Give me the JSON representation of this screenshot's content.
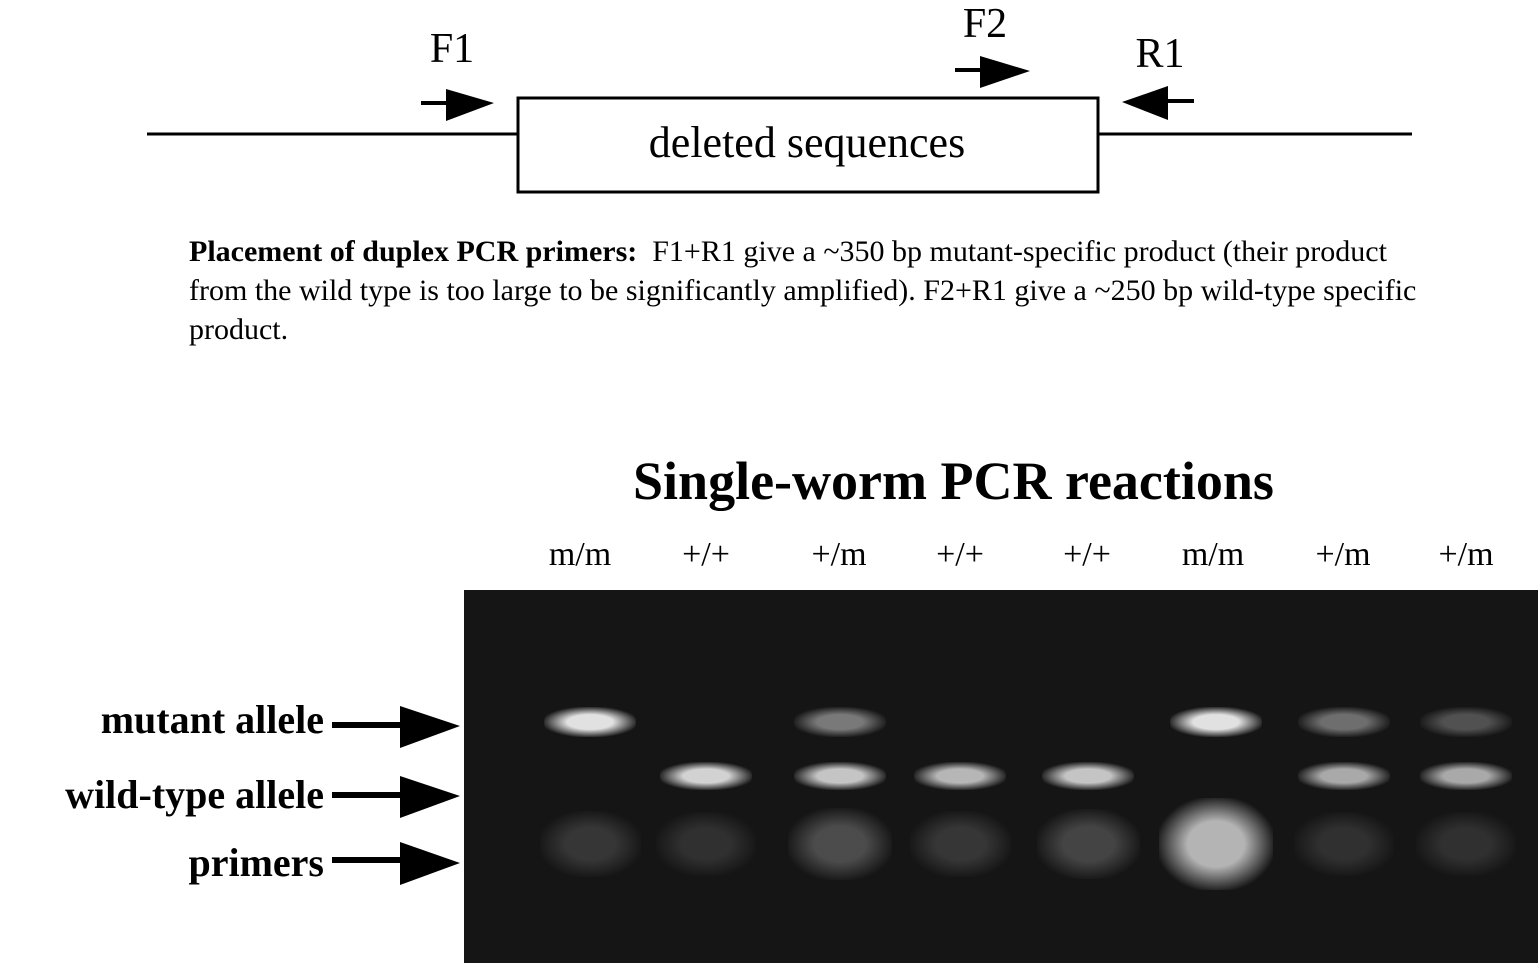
{
  "primer_map": {
    "box_label": "deleted sequences",
    "primers": [
      {
        "id": "F1",
        "label": "F1",
        "direction": "right"
      },
      {
        "id": "F2",
        "label": "F2",
        "direction": "right"
      },
      {
        "id": "R1",
        "label": "R1",
        "direction": "left"
      }
    ]
  },
  "caption": {
    "bold": "Placement of duplex PCR primers:",
    "text": "F1+R1 give a ~350 bp mutant-specific product (their product from the wild type is too large to be significantly amplified).  F2+R1 give a ~250 bp wild-type specific product."
  },
  "gel": {
    "title": "Single-worm PCR reactions",
    "lanes": [
      {
        "label": "m/m",
        "mutant": 0.95,
        "wildtype": 0.0,
        "primers": 0.25
      },
      {
        "label": "+/+",
        "mutant": 0.0,
        "wildtype": 0.9,
        "primers": 0.2
      },
      {
        "label": "+/m",
        "mutant": 0.55,
        "wildtype": 0.85,
        "primers": 0.4
      },
      {
        "label": "+/+",
        "mutant": 0.0,
        "wildtype": 0.8,
        "primers": 0.25
      },
      {
        "label": "+/+",
        "mutant": 0.0,
        "wildtype": 0.85,
        "primers": 0.35
      },
      {
        "label": "m/m",
        "mutant": 0.95,
        "wildtype": 0.0,
        "primers": 0.9
      },
      {
        "label": "+/m",
        "mutant": 0.5,
        "wildtype": 0.75,
        "primers": 0.2
      },
      {
        "label": "+/m",
        "mutant": 0.35,
        "wildtype": 0.75,
        "primers": 0.2
      }
    ],
    "band_labels": [
      {
        "id": "mutant",
        "label": "mutant allele"
      },
      {
        "id": "wildtype",
        "label": "wild-type allele"
      },
      {
        "id": "primers",
        "label": "primers"
      }
    ]
  }
}
